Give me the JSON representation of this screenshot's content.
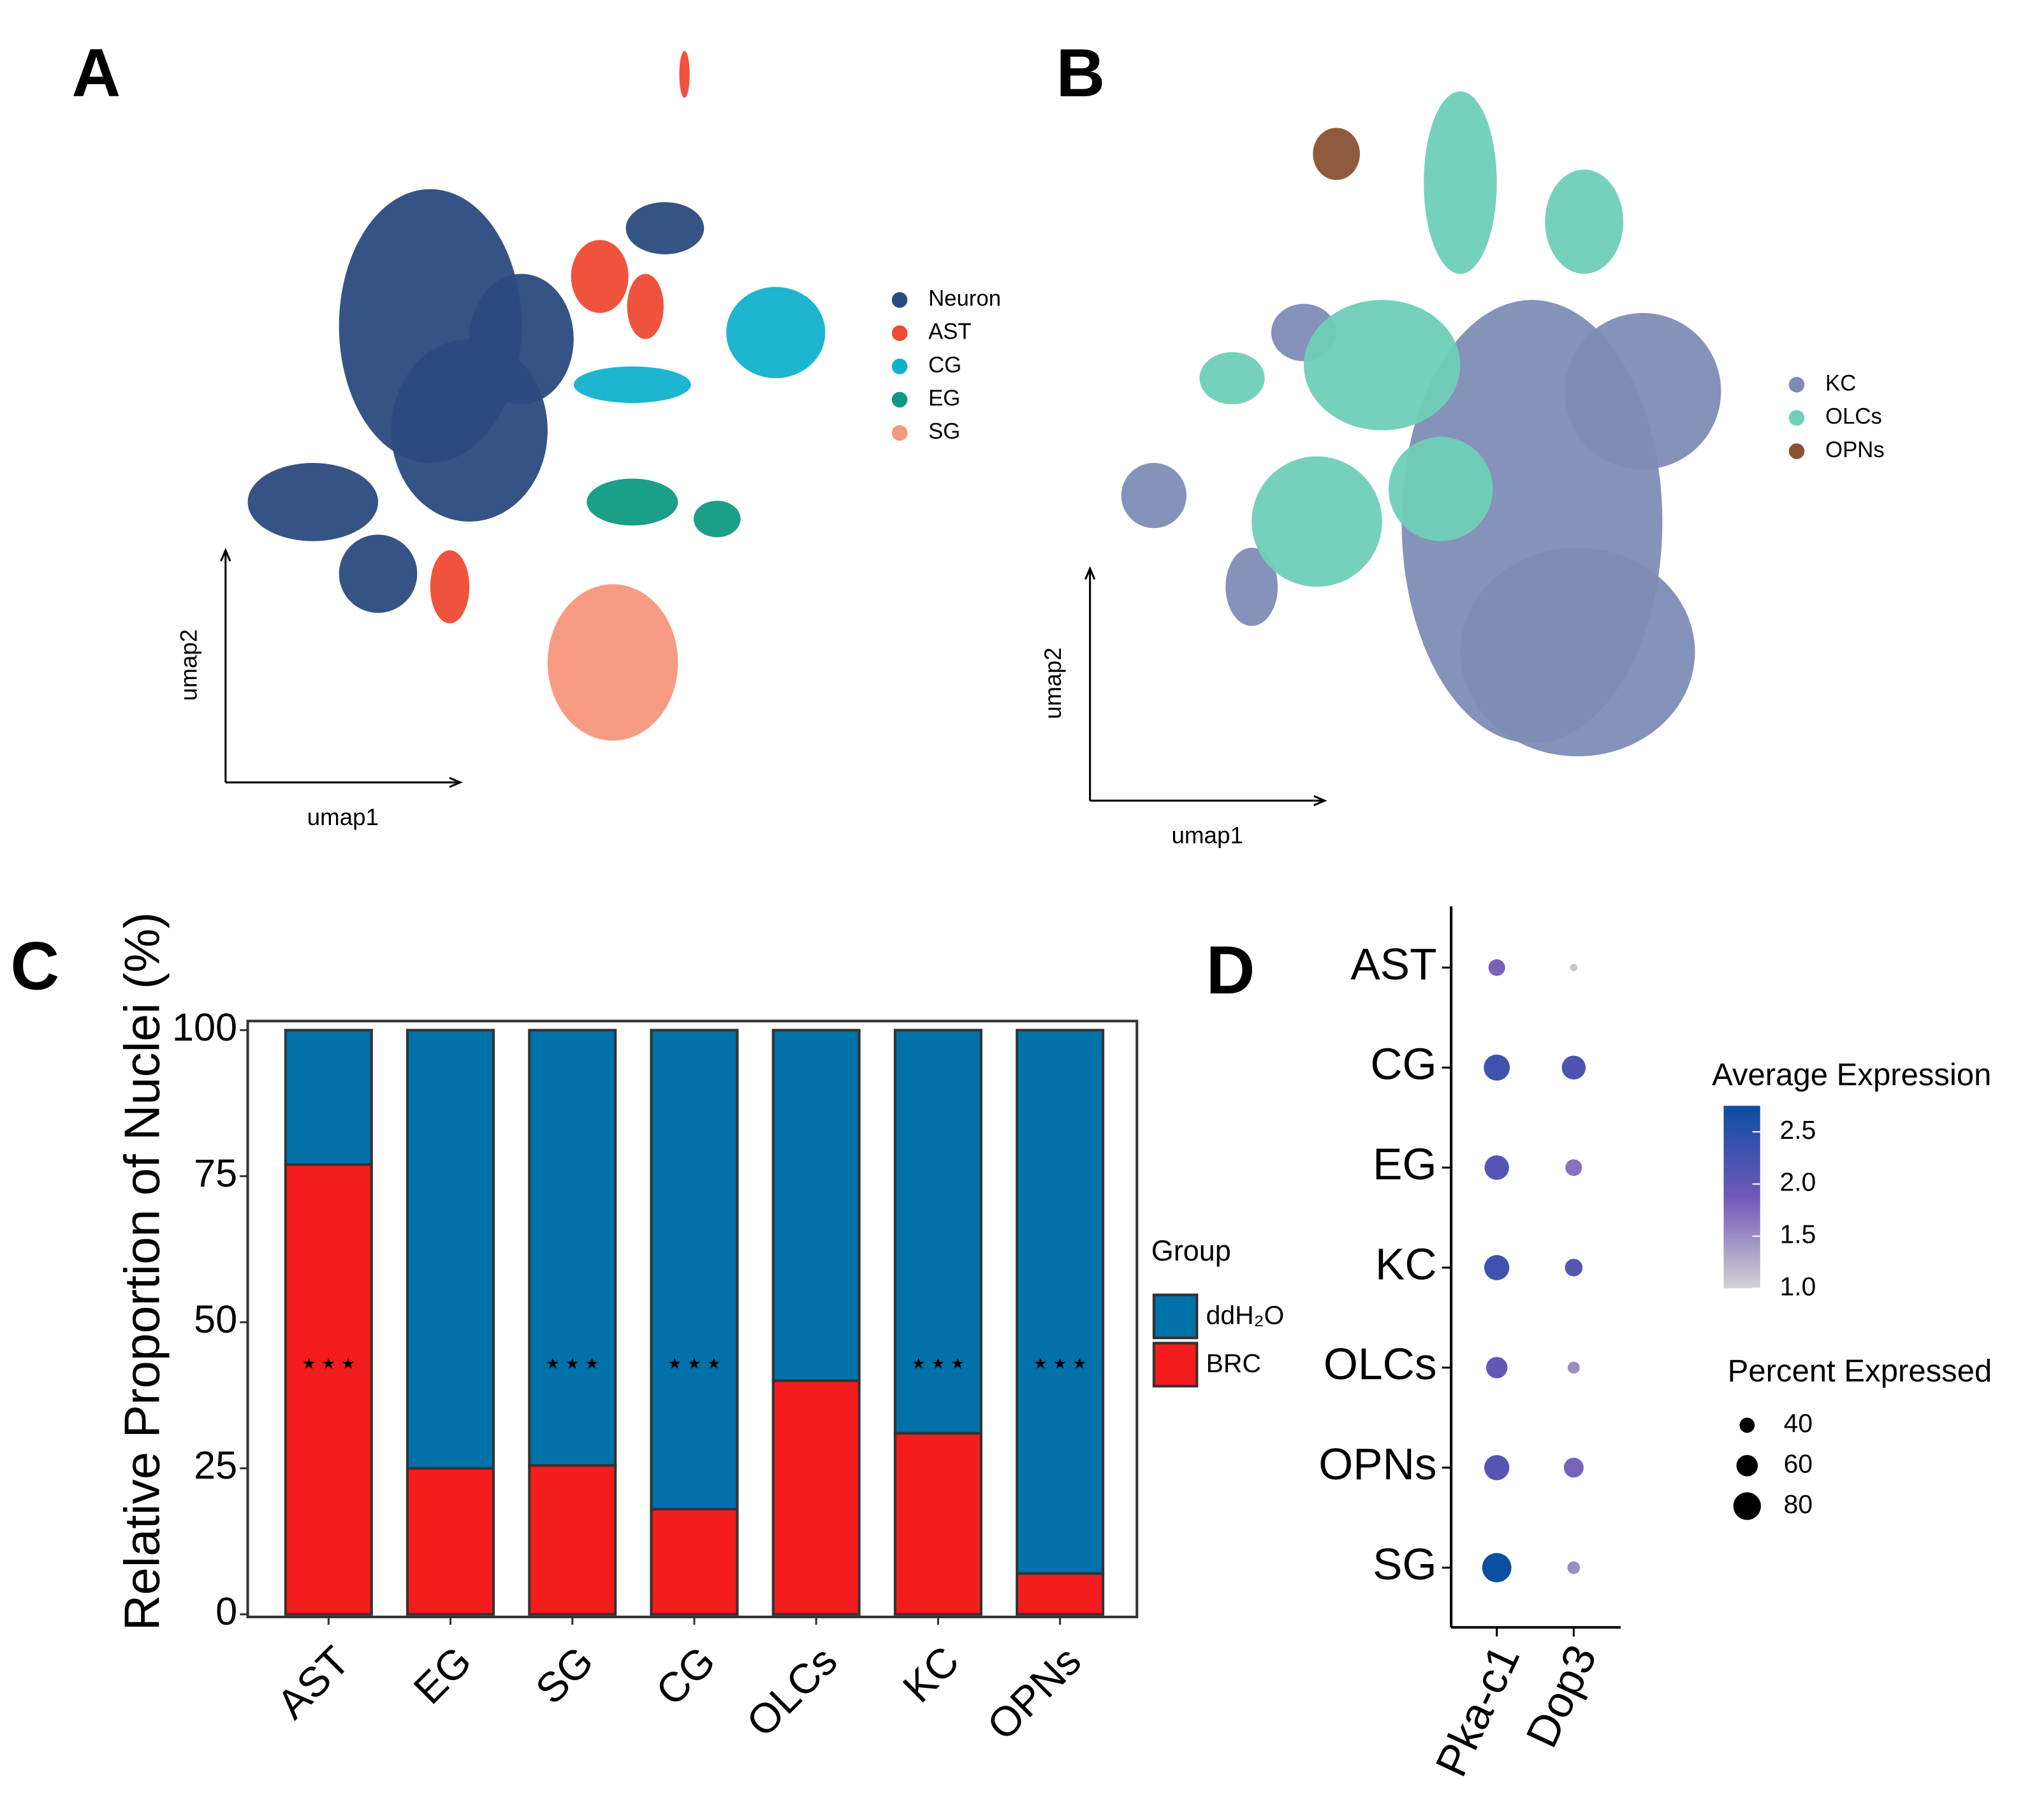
{
  "chart_data": [
    {
      "type": "scatter",
      "panel_label": "A",
      "xlabel": "umap1",
      "ylabel": "umap2",
      "series": [
        {
          "name": "Neuron",
          "color": "#2b4a7e"
        },
        {
          "name": "AST",
          "color": "#ef4a33"
        },
        {
          "name": "CG",
          "color": "#12b1cb"
        },
        {
          "name": "EG",
          "color": "#0f9a80"
        },
        {
          "name": "SG",
          "color": "#f7977c"
        }
      ]
    },
    {
      "type": "scatter",
      "panel_label": "B",
      "xlabel": "umap1",
      "ylabel": "umap2",
      "series": [
        {
          "name": "KC",
          "color": "#7e8cb5"
        },
        {
          "name": "OLCs",
          "color": "#6fcfb8"
        },
        {
          "name": "OPNs",
          "color": "#8a5233"
        }
      ]
    },
    {
      "type": "bar",
      "panel_label": "C",
      "ylabel": "Relative Proportion of Nuclei (%)",
      "categories": [
        "AST",
        "EG",
        "SG",
        "CG",
        "OLCs",
        "KC",
        "OPNs"
      ],
      "series": [
        {
          "name": "ddH₂O",
          "color": "#0071a9",
          "values": [
            23,
            75,
            74.5,
            82,
            60,
            69,
            93
          ]
        },
        {
          "name": "BRC",
          "color": "#f41c1c",
          "values": [
            77,
            25,
            25.5,
            18,
            40,
            31,
            7
          ]
        }
      ],
      "ylim": [
        0,
        100
      ],
      "yticks": [
        0,
        25,
        50,
        75,
        100
      ],
      "legend_title": "Group",
      "annotations": [
        {
          "category": "AST",
          "text": "⋆⋆⋆"
        },
        {
          "category": "SG",
          "text": "⋆⋆⋆"
        },
        {
          "category": "CG",
          "text": "⋆⋆⋆"
        },
        {
          "category": "KC",
          "text": "⋆⋆⋆"
        },
        {
          "category": "OPNs",
          "text": "⋆⋆⋆"
        }
      ]
    },
    {
      "type": "dot",
      "panel_label": "D",
      "categories": [
        "AST",
        "CG",
        "EG",
        "KC",
        "OLCs",
        "OPNs",
        "SG"
      ],
      "x": [
        "Pka-c1",
        "Dop3"
      ],
      "average_expression": [
        [
          1.8,
          1.1
        ],
        [
          2.3,
          2.2
        ],
        [
          2.1,
          1.7
        ],
        [
          2.3,
          2.1
        ],
        [
          2.0,
          1.5
        ],
        [
          2.1,
          1.8
        ],
        [
          2.75,
          1.5
        ]
      ],
      "percent_expressed": [
        [
          45,
          15
        ],
        [
          75,
          68
        ],
        [
          70,
          45
        ],
        [
          72,
          48
        ],
        [
          60,
          30
        ],
        [
          72,
          55
        ],
        [
          85,
          32
        ]
      ],
      "color_title": "Average Expression",
      "colors": [
        "#d3d3d3",
        "#7058ba",
        "#0b4ea2"
      ],
      "colorlim": [
        1,
        2.75
      ],
      "colorticks": [
        {
          "value": 1,
          "label": "1.0"
        },
        1.5,
        {
          "value": 2,
          "label": "2.0"
        },
        2.5
      ],
      "size_title": "Percent Expressed",
      "size_ticks": [
        40,
        60,
        80
      ]
    }
  ]
}
